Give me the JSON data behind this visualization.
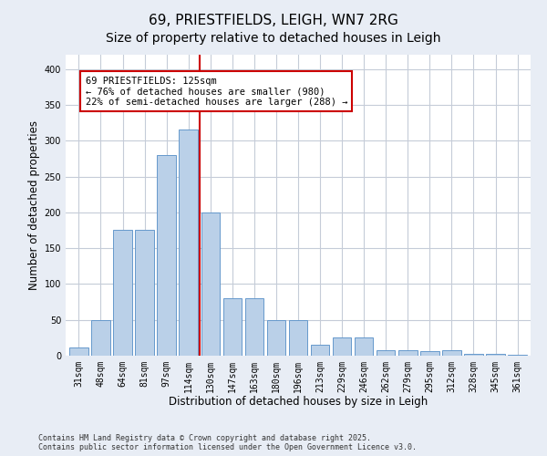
{
  "title": "69, PRIESTFIELDS, LEIGH, WN7 2RG",
  "subtitle": "Size of property relative to detached houses in Leigh",
  "xlabel": "Distribution of detached houses by size in Leigh",
  "ylabel": "Number of detached properties",
  "categories": [
    "31sqm",
    "48sqm",
    "64sqm",
    "81sqm",
    "97sqm",
    "114sqm",
    "130sqm",
    "147sqm",
    "163sqm",
    "180sqm",
    "196sqm",
    "213sqm",
    "229sqm",
    "246sqm",
    "262sqm",
    "279sqm",
    "295sqm",
    "312sqm",
    "328sqm",
    "345sqm",
    "361sqm"
  ],
  "values": [
    12,
    50,
    175,
    175,
    280,
    315,
    200,
    80,
    80,
    50,
    50,
    15,
    25,
    25,
    8,
    8,
    6,
    8,
    3,
    2,
    1
  ],
  "bar_color": "#bad0e8",
  "bar_edge_color": "#6699cc",
  "vline_color": "#cc0000",
  "vline_x_index": 5.5,
  "annotation_text": "69 PRIESTFIELDS: 125sqm\n← 76% of detached houses are smaller (980)\n22% of semi-detached houses are larger (288) →",
  "annotation_box_facecolor": "white",
  "annotation_box_edgecolor": "#cc0000",
  "ylim": [
    0,
    420
  ],
  "yticks": [
    0,
    50,
    100,
    150,
    200,
    250,
    300,
    350,
    400
  ],
  "bg_color": "#e8edf5",
  "plot_bg_color": "#ffffff",
  "grid_color": "#c5ccd8",
  "footnote": "Contains HM Land Registry data © Crown copyright and database right 2025.\nContains public sector information licensed under the Open Government Licence v3.0.",
  "title_fontsize": 11,
  "label_fontsize": 8.5,
  "tick_fontsize": 7,
  "footnote_fontsize": 6,
  "ann_fontsize": 7.5
}
